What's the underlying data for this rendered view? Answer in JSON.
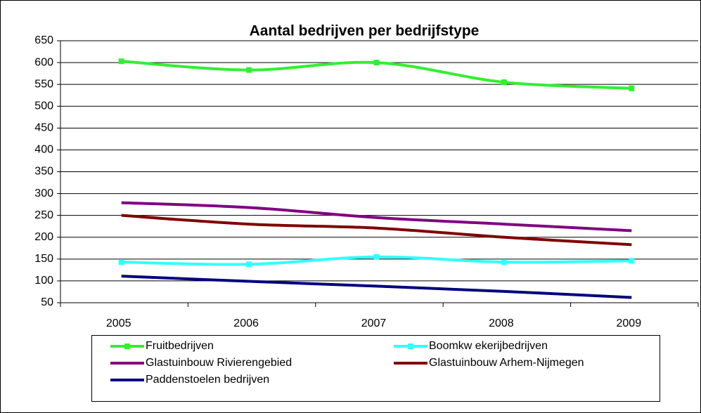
{
  "chart_data": {
    "type": "line",
    "title": "Aantal bedrijven per bedrijfstype",
    "categories": [
      "2005",
      "2006",
      "2007",
      "2008",
      "2009"
    ],
    "series": [
      {
        "name": "Fruitbedrijven",
        "color": "#33ee33",
        "marker": true,
        "values": [
          603,
          583,
          600,
          555,
          541
        ]
      },
      {
        "name": "Boomkw ekerijbedrijven",
        "color": "#33ffff",
        "marker": true,
        "values": [
          143,
          138,
          155,
          143,
          146
        ]
      },
      {
        "name": "Glastuinbouw Rivierengebied",
        "color": "#800080",
        "marker": false,
        "values": [
          279,
          268,
          245,
          230,
          215
        ]
      },
      {
        "name": "Glastuinbouw Arhem-Nijmegen",
        "color": "#800000",
        "marker": false,
        "values": [
          250,
          230,
          221,
          200,
          183
        ]
      },
      {
        "name": "Paddenstoelen bedrijven",
        "color": "#000080",
        "marker": false,
        "values": [
          111,
          99,
          88,
          76,
          62
        ]
      }
    ],
    "ylim": [
      50,
      650
    ],
    "yticks": [
      50,
      100,
      150,
      200,
      250,
      300,
      350,
      400,
      450,
      500,
      550,
      600,
      650
    ],
    "grid": true,
    "smooth": true,
    "legend": "bottom"
  }
}
